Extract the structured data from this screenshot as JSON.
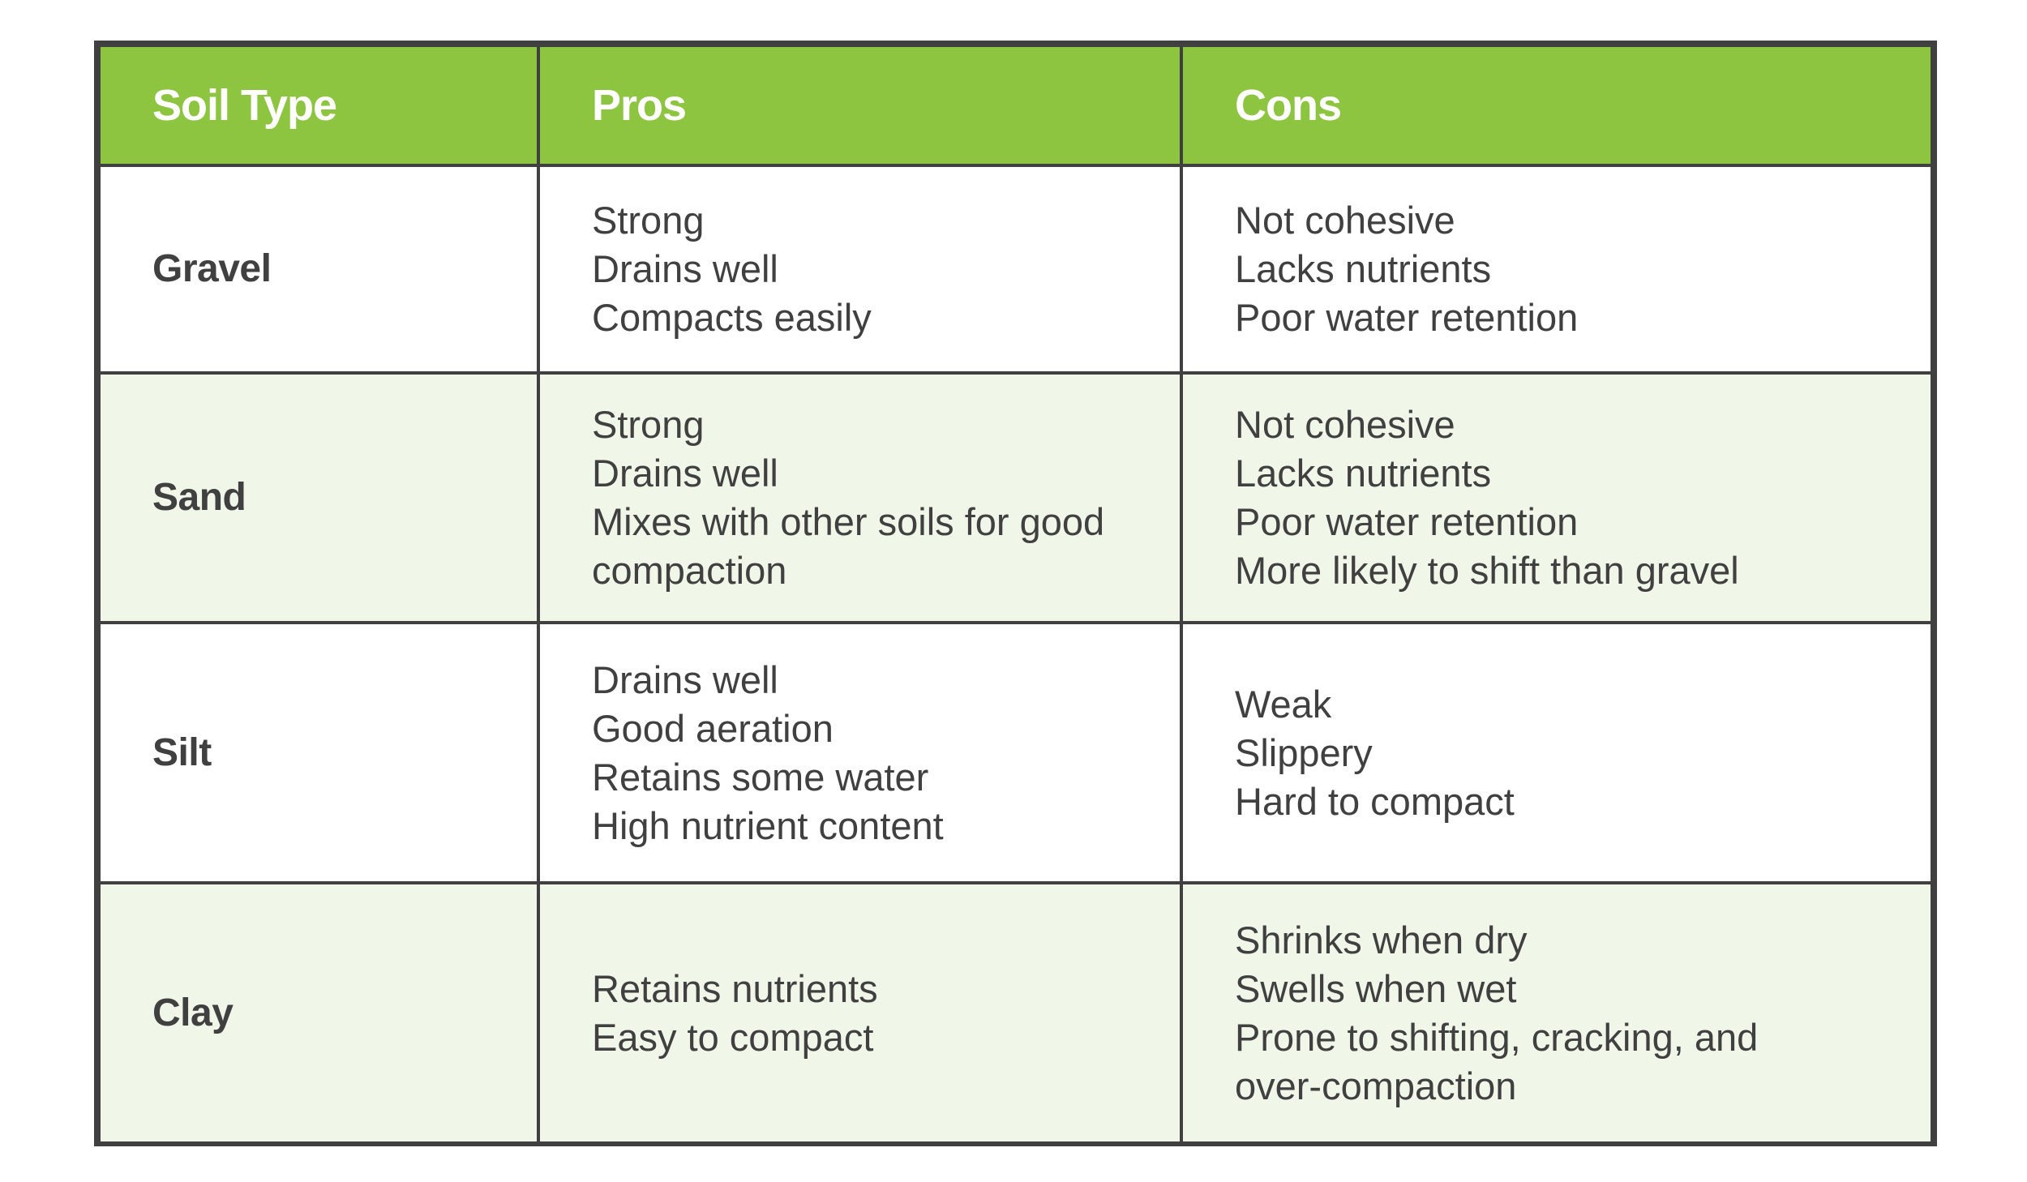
{
  "table": {
    "headers": [
      "Soil Type",
      "Pros",
      "Cons"
    ],
    "colors": {
      "header_bg": "#8dc541",
      "header_text": "#ffffff",
      "border": "#404040",
      "alt_row_bg": "#f0f6e8",
      "body_text": "#404040"
    },
    "rows": [
      {
        "soil": "Gravel",
        "pros": [
          "Strong",
          "Drains well",
          "Compacts easily"
        ],
        "cons": [
          "Not cohesive",
          "Lacks nutrients",
          "Poor water retention"
        ]
      },
      {
        "soil": "Sand",
        "pros": [
          "Strong",
          "Drains well",
          "Mixes with other soils for good",
          "compaction"
        ],
        "cons": [
          "Not cohesive",
          "Lacks nutrients",
          "Poor water retention",
          "More likely to shift than gravel"
        ]
      },
      {
        "soil": "Silt",
        "pros": [
          "Drains well",
          "Good aeration",
          "Retains some water",
          "High nutrient content"
        ],
        "cons": [
          "Weak",
          "Slippery",
          "Hard to compact"
        ]
      },
      {
        "soil": "Clay",
        "pros": [
          "Retains nutrients",
          "Easy to compact"
        ],
        "cons": [
          "Shrinks when dry",
          "Swells when wet",
          "Prone to shifting, cracking, and",
          "over-compaction"
        ]
      }
    ]
  }
}
